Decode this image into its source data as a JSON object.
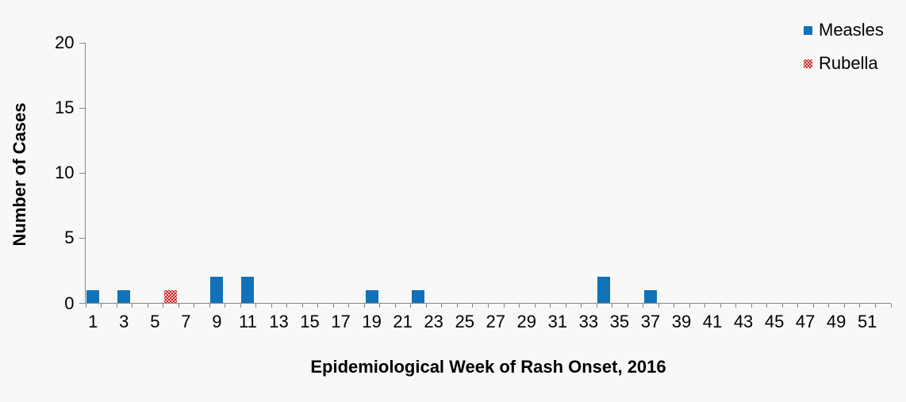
{
  "chart_data": {
    "type": "bar",
    "title": "",
    "xlabel": "Epidemiological Week of Rash Onset, 2016",
    "ylabel": "Number of Cases",
    "x_range": [
      1,
      52
    ],
    "ylim": [
      0,
      20
    ],
    "y_ticks": [
      0,
      5,
      10,
      15,
      20
    ],
    "x_tick_labels": [
      1,
      3,
      5,
      7,
      9,
      11,
      13,
      15,
      17,
      19,
      21,
      23,
      25,
      27,
      29,
      31,
      33,
      35,
      37,
      39,
      41,
      43,
      45,
      47,
      49,
      51
    ],
    "x_minor_ticks_every_week": true,
    "grid": "off",
    "legend_position": "top-right",
    "series": [
      {
        "name": "Measles",
        "color": "#1272b9",
        "pattern": "solid",
        "points": [
          {
            "week": 1,
            "cases": 1
          },
          {
            "week": 3,
            "cases": 1
          },
          {
            "week": 9,
            "cases": 2
          },
          {
            "week": 11,
            "cases": 2
          },
          {
            "week": 19,
            "cases": 1
          },
          {
            "week": 22,
            "cases": 1
          },
          {
            "week": 34,
            "cases": 2
          },
          {
            "week": 37,
            "cases": 1
          }
        ]
      },
      {
        "name": "Rubella",
        "color": "#cc2424",
        "pattern": "dots",
        "points": [
          {
            "week": 6,
            "cases": 1
          }
        ]
      }
    ]
  },
  "colors": {
    "background": "#f8f8f6",
    "axis": "#858585",
    "text": "#000000"
  }
}
